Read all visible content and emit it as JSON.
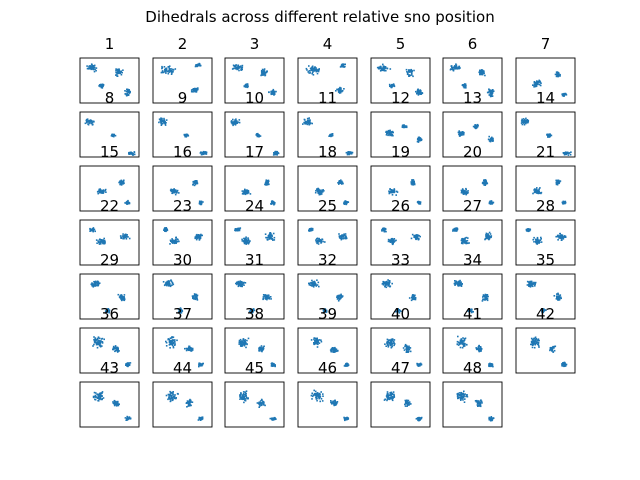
{
  "title": "Dihedrals across different relative sno position",
  "chart_data": {
    "type": "scatter",
    "title": "Dihedrals across different relative sno position",
    "panel_count": 48,
    "panel_labels": [
      "1",
      "2",
      "3",
      "4",
      "5",
      "6",
      "7",
      "8",
      "9",
      "10",
      "11",
      "12",
      "13",
      "14",
      "15",
      "16",
      "17",
      "18",
      "19",
      "20",
      "21",
      "22",
      "23",
      "24",
      "25",
      "26",
      "27",
      "28",
      "29",
      "30",
      "31",
      "32",
      "33",
      "34",
      "35",
      "36",
      "37",
      "38",
      "39",
      "40",
      "41",
      "42",
      "43",
      "44",
      "45",
      "46",
      "47",
      "48"
    ],
    "grid": {
      "rows": 7,
      "cols": 7
    },
    "marker_color": "#1f77b4",
    "axes_visible": false,
    "note_values": "individual point values are not readable; points are approximate cluster positions (normalized 0-1 within each panel)",
    "cluster_templates": [
      [
        [
          0.2,
          0.2,
          0.12,
          0.1
        ],
        [
          0.65,
          0.3,
          0.08,
          0.12
        ],
        [
          0.8,
          0.75,
          0.08,
          0.1
        ],
        [
          0.35,
          0.6,
          0.06,
          0.06
        ]
      ],
      [
        [
          0.25,
          0.25,
          0.15,
          0.12
        ],
        [
          0.75,
          0.15,
          0.06,
          0.06
        ],
        [
          0.7,
          0.7,
          0.08,
          0.08
        ]
      ],
      [
        [
          0.35,
          0.55,
          0.1,
          0.1
        ],
        [
          0.7,
          0.35,
          0.06,
          0.08
        ],
        [
          0.8,
          0.8,
          0.05,
          0.05
        ]
      ],
      [
        [
          0.15,
          0.2,
          0.1,
          0.1
        ],
        [
          0.85,
          0.9,
          0.08,
          0.05
        ],
        [
          0.55,
          0.5,
          0.05,
          0.05
        ]
      ],
      [
        [
          0.3,
          0.45,
          0.1,
          0.1
        ],
        [
          0.55,
          0.3,
          0.06,
          0.06
        ],
        [
          0.8,
          0.6,
          0.06,
          0.08
        ]
      ],
      [
        [
          0.35,
          0.45,
          0.1,
          0.1
        ],
        [
          0.75,
          0.35,
          0.1,
          0.1
        ],
        [
          0.2,
          0.2,
          0.06,
          0.06
        ]
      ],
      [
        [
          0.25,
          0.2,
          0.12,
          0.1
        ],
        [
          0.7,
          0.5,
          0.08,
          0.1
        ],
        [
          0.45,
          0.8,
          0.06,
          0.06
        ]
      ],
      [
        [
          0.3,
          0.3,
          0.12,
          0.15
        ],
        [
          0.6,
          0.45,
          0.08,
          0.1
        ],
        [
          0.8,
          0.8,
          0.06,
          0.06
        ]
      ]
    ],
    "panel_templates": [
      0,
      1,
      0,
      1,
      0,
      0,
      2,
      3,
      3,
      3,
      3,
      4,
      4,
      3,
      2,
      2,
      2,
      2,
      2,
      2,
      2,
      5,
      5,
      5,
      5,
      5,
      5,
      5,
      6,
      6,
      6,
      6,
      6,
      6,
      6,
      7,
      7,
      7,
      7,
      7,
      7,
      7,
      7,
      7,
      7,
      7,
      7,
      7
    ]
  }
}
